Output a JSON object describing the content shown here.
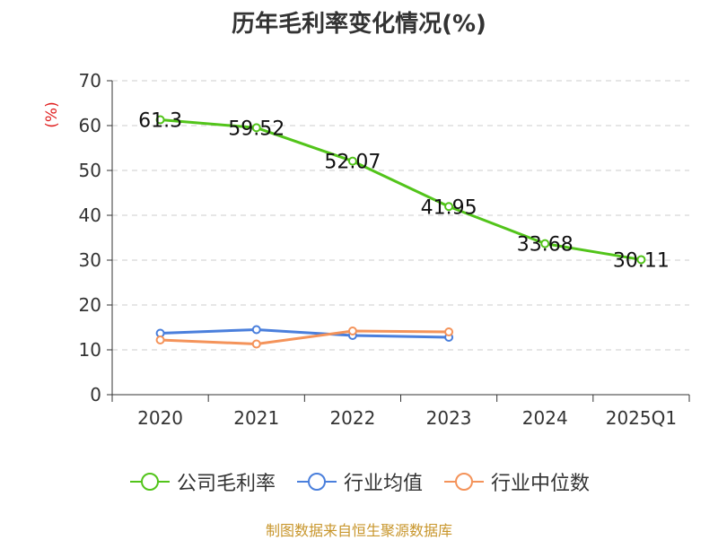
{
  "chart_data": {
    "type": "line",
    "title": "历年毛利率变化情况(%)",
    "ylabel": "(%)",
    "xlabel": "",
    "categories": [
      "2020",
      "2021",
      "2022",
      "2023",
      "2024",
      "2025Q1"
    ],
    "ylim": [
      0,
      70
    ],
    "yticks": [
      0,
      10,
      20,
      30,
      40,
      50,
      60,
      70
    ],
    "grid": true,
    "legend_position": "bottom",
    "series": [
      {
        "name": "公司毛利率",
        "color": "#52c41a",
        "values": [
          61.3,
          59.52,
          52.07,
          41.95,
          33.68,
          30.11
        ],
        "labels": [
          "61.3",
          "59.52",
          "52.07",
          "41.95",
          "33.68",
          "30.11"
        ]
      },
      {
        "name": "行业均值",
        "color": "#4a7fdc",
        "values": [
          13.7,
          14.5,
          13.2,
          12.8,
          null,
          null
        ]
      },
      {
        "name": "行业中位数",
        "color": "#f4935a",
        "values": [
          12.2,
          11.3,
          14.2,
          14.0,
          null,
          null
        ]
      }
    ]
  },
  "source": {
    "text": "制图数据来自恒生聚源数据库",
    "color": "#c8962c"
  },
  "colors": {
    "axis": "#333333",
    "grid": "#cccccc",
    "ylabel": "#e02020"
  }
}
